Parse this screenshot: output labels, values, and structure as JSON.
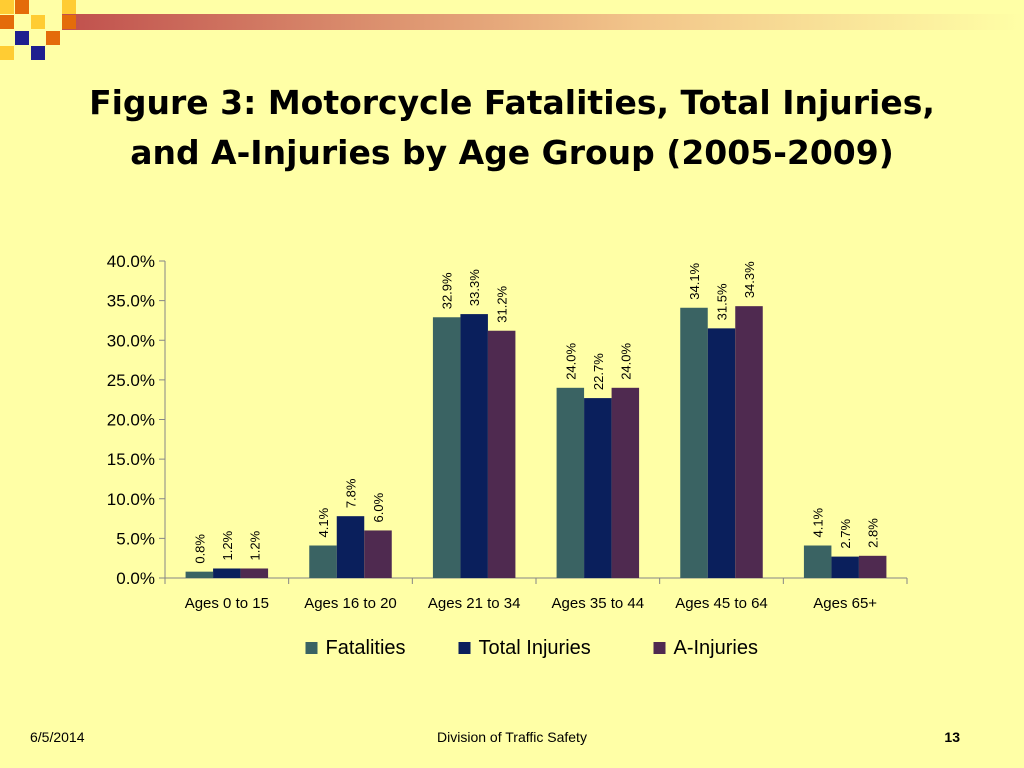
{
  "slide": {
    "title_line1": "Figure 3: Motorcycle Fatalities, Total Injuries,",
    "title_line2": "and A-Injuries by Age Group (2005-2009)",
    "footer_date": "6/5/2014",
    "footer_center": "Division of Traffic Safety",
    "page_number": "13"
  },
  "colors": {
    "background": "#FFFFA6",
    "deco_red": "#C0504D",
    "deco_orange": "#E46C0A",
    "deco_navy": "#1F1F8F",
    "deco_yellow": "#FFCC33"
  },
  "chart_data": {
    "type": "bar",
    "title": "",
    "xlabel": "",
    "ylabel": "",
    "categories": [
      "Ages 0 to 15",
      "Ages 16 to 20",
      "Ages 21 to 34",
      "Ages 35 to 44",
      "Ages 45 to 64",
      "Ages 65+"
    ],
    "series": [
      {
        "name": "Fatalities",
        "color": "#3A6363",
        "values": [
          0.8,
          4.1,
          32.9,
          24.0,
          34.1,
          4.1
        ],
        "labels": [
          "0.8%",
          "4.1%",
          "32.9%",
          "24.0%",
          "34.1%",
          "4.1%"
        ]
      },
      {
        "name": "Total Injuries",
        "color": "#0A1F5C",
        "values": [
          1.2,
          7.8,
          33.3,
          22.7,
          31.5,
          2.7
        ],
        "labels": [
          "1.2%",
          "7.8%",
          "33.3%",
          "22.7%",
          "31.5%",
          "2.7%"
        ]
      },
      {
        "name": "A-Injuries",
        "color": "#4F2A50",
        "values": [
          1.2,
          6.0,
          31.2,
          24.0,
          34.3,
          2.8
        ],
        "labels": [
          "1.2%",
          "6.0%",
          "31.2%",
          "24.0%",
          "34.3%",
          "2.8%"
        ]
      }
    ],
    "ylim": [
      0,
      40
    ],
    "yticks": [
      0,
      5,
      10,
      15,
      20,
      25,
      30,
      35,
      40
    ],
    "ytick_labels": [
      "0.0%",
      "5.0%",
      "10.0%",
      "15.0%",
      "20.0%",
      "25.0%",
      "30.0%",
      "35.0%",
      "40.0%"
    ],
    "grid": false,
    "legend_position": "bottom"
  }
}
